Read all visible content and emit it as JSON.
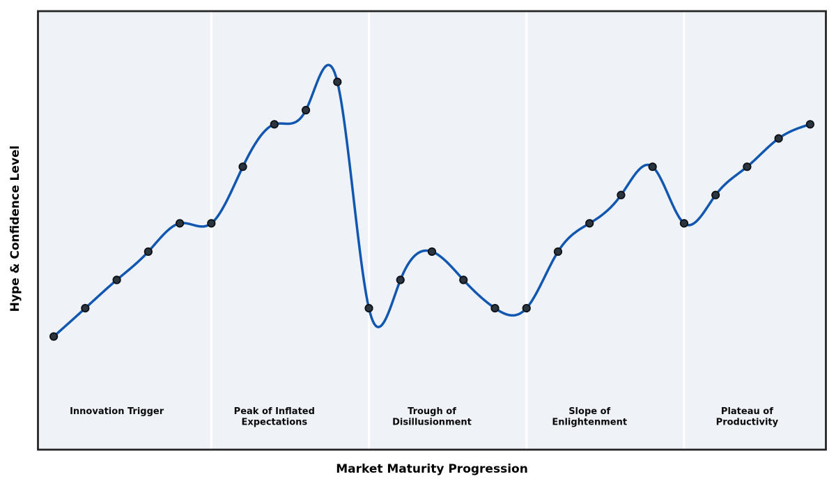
{
  "figure": {
    "background": "#ffffff",
    "title": ""
  },
  "chart_data": {
    "type": "line",
    "title": "",
    "xlabel": "Market Maturity Progression",
    "ylabel": "Hype & Confidence Level",
    "x": [
      1,
      2,
      3,
      4,
      5,
      6,
      7,
      8,
      9,
      10,
      11,
      12,
      13,
      14,
      15,
      16,
      17,
      18,
      19,
      20,
      21,
      22,
      23,
      24,
      25
    ],
    "y": [
      10,
      20,
      30,
      40,
      50,
      50,
      70,
      85,
      90,
      100,
      20,
      30,
      40,
      30,
      20,
      20,
      40,
      50,
      60,
      70,
      50,
      60,
      70,
      80,
      85
    ],
    "xlim": [
      0.5,
      25.5
    ],
    "ylim": [
      -30,
      125
    ],
    "grid": false,
    "legend": "none",
    "axis_ticks": "none",
    "smoothing": "natural-cubic-spline",
    "colors": {
      "line": "#1157b0",
      "marker_fill": "#2b3540",
      "marker_edge": "#0c1014",
      "plot_background": "#eff3f8",
      "plot_border": "#262626",
      "phase_separator": "#ffffff",
      "text": "#0a0a0a"
    },
    "line_width": 3.5,
    "marker_radius": 5.2,
    "marker_edge_width": 1.8,
    "phase_boundaries_x": [
      6,
      11,
      16,
      21
    ],
    "phases": [
      {
        "label": "Innovation Trigger",
        "center_x": 3
      },
      {
        "label": "Peak of Inflated\nExpectations",
        "center_x": 8
      },
      {
        "label": "Trough of\nDisillusionment",
        "center_x": 13
      },
      {
        "label": "Slope of\nEnlightenment",
        "center_x": 18
      },
      {
        "label": "Plateau of\nProductivity",
        "center_x": 23
      }
    ]
  }
}
